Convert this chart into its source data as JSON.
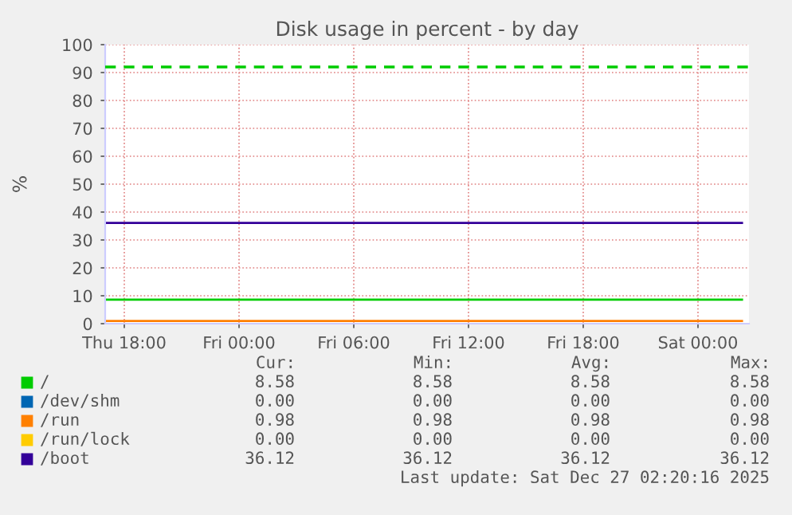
{
  "chart_data": {
    "type": "line",
    "title": "Disk usage in percent - by day",
    "ylabel": "%",
    "x": [
      "2025-12-25T17:06",
      "2025-12-27T02:18"
    ],
    "series": [
      {
        "name": "/",
        "color": "#00cc00",
        "values": [
          8.58,
          8.58
        ]
      },
      {
        "name": "/dev/shm",
        "color": "#0066b3",
        "values": [
          null,
          null
        ]
      },
      {
        "name": "/run",
        "color": "#ff8000",
        "values": [
          0.98,
          0.98
        ]
      },
      {
        "name": "/run/lock",
        "color": "#ffcc00",
        "values": [
          null,
          null
        ]
      },
      {
        "name": "/boot",
        "color": "#330099",
        "values": [
          36.12,
          36.12
        ]
      }
    ],
    "xlim": [
      "2025-12-25T17:00",
      "2025-12-27T02:40"
    ],
    "xticks": [
      {
        "value": "2025-12-25T18:00",
        "label": "Thu 18:00"
      },
      {
        "value": "2025-12-26T00:00",
        "label": "Fri 00:00"
      },
      {
        "value": "2025-12-26T06:00",
        "label": "Fri 06:00"
      },
      {
        "value": "2025-12-26T12:00",
        "label": "Fri 12:00"
      },
      {
        "value": "2025-12-26T18:00",
        "label": "Fri 18:00"
      },
      {
        "value": "2025-12-27T00:00",
        "label": "Sat 00:00"
      }
    ],
    "ylim": [
      0,
      100
    ],
    "yticks": [
      0,
      10,
      20,
      30,
      40,
      50,
      60,
      70,
      80,
      90,
      100
    ],
    "ref_lines": [
      {
        "axis": "y",
        "value": 92,
        "color": "#00cc00",
        "line_style": "dashed"
      }
    ],
    "annotations": [
      "Cur:",
      "Min:",
      "Avg:",
      "Max:",
      "8.58",
      "8.58",
      "8.58",
      "8.58",
      "0.00",
      "0.00",
      "0.00",
      "0.00",
      "0.98",
      "0.98",
      "0.98",
      "0.98",
      "0.00",
      "0.00",
      "0.00",
      "0.00",
      "36.12",
      "36.12",
      "36.12",
      "36.12",
      "Last update: Sat Dec 27 02:20:16 2025"
    ],
    "grid": true,
    "legend": "bottom",
    "marker": "none",
    "line_style": "solid"
  }
}
